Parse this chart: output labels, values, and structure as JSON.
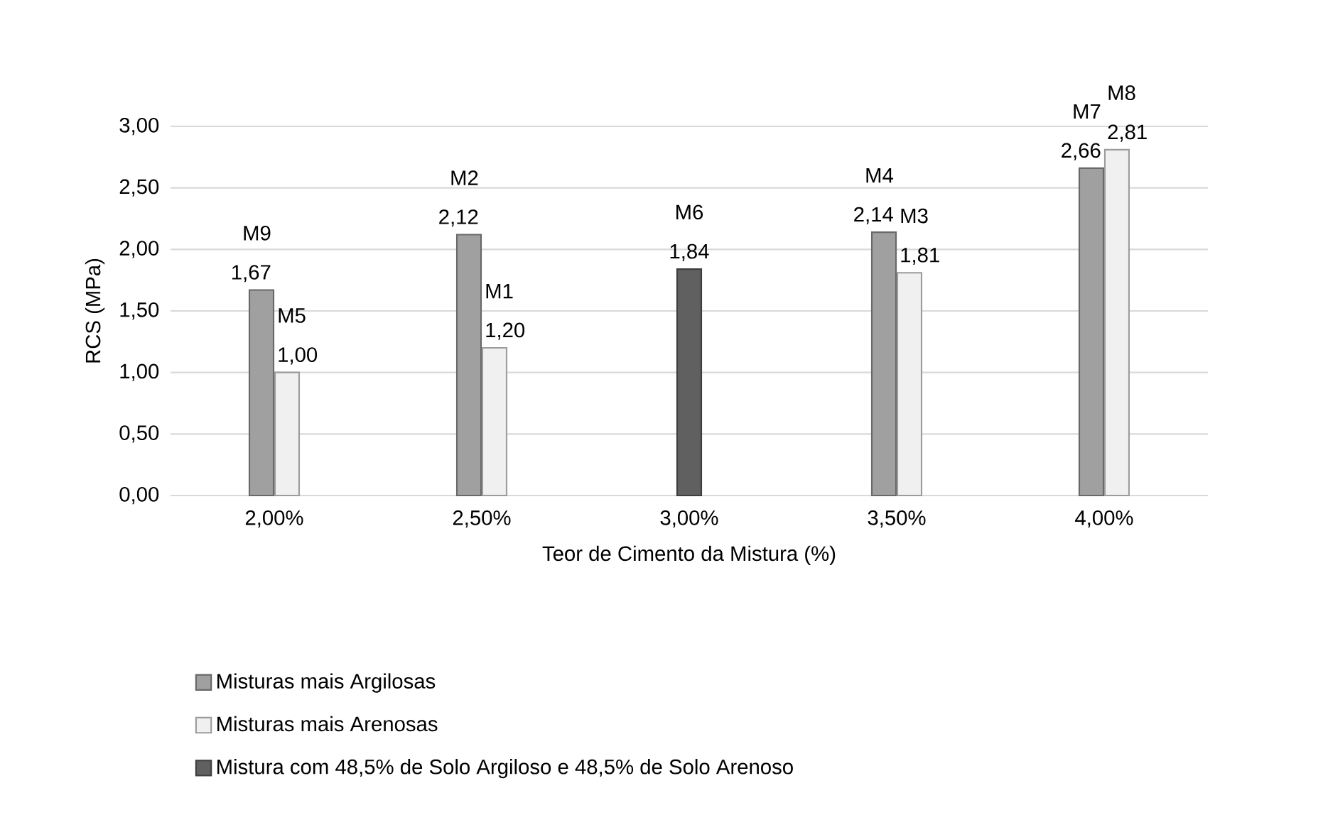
{
  "chart_data": {
    "type": "bar",
    "xlabel": "Teor de Cimento da Mistura (%)",
    "ylabel": "RCS (MPa)",
    "categories": [
      "2,00%",
      "2,50%",
      "3,00%",
      "3,50%",
      "4,00%"
    ],
    "series": [
      {
        "name": "Misturas mais Argilosas",
        "color": "#a0a0a0",
        "values": [
          1.67,
          2.12,
          null,
          2.14,
          2.66
        ],
        "value_labels": [
          "1,67",
          "2,12",
          null,
          "2,14",
          "2,66"
        ]
      },
      {
        "name": "Misturas mais Arenosas",
        "color": "#f0f0f0",
        "values": [
          1.0,
          1.2,
          null,
          1.81,
          2.81
        ],
        "value_labels": [
          "1,00",
          "1,20",
          null,
          "1,81",
          "2,81"
        ]
      },
      {
        "name": "Mistura com 48,5% de Solo Argiloso e 48,5% de Solo Arenoso",
        "color": "#606060",
        "values": [
          null,
          null,
          1.84,
          null,
          null
        ],
        "value_labels": [
          null,
          null,
          "1,84",
          null,
          null
        ]
      }
    ],
    "ylim": [
      0,
      3
    ],
    "yticks": [
      {
        "value": 0,
        "label": "0,00"
      },
      {
        "value": 0.5,
        "label": "0,50"
      },
      {
        "value": 1,
        "label": "1,00"
      },
      {
        "value": 1.5,
        "label": "1,50"
      },
      {
        "value": 2,
        "label": "2,00"
      },
      {
        "value": 2.5,
        "label": "2,50"
      },
      {
        "value": 3,
        "label": "3,00"
      }
    ],
    "grid": "y",
    "legend": "bottom",
    "annotations": [
      {
        "text": "M9",
        "x": "2,00%",
        "y": 1.67
      },
      {
        "text": "M5",
        "x": "2,00%",
        "y": 1.0
      },
      {
        "text": "M2",
        "x": "2,50%",
        "y": 2.12
      },
      {
        "text": "M1",
        "x": "2,50%",
        "y": 1.2
      },
      {
        "text": "M6",
        "x": "3,00%",
        "y": 1.84
      },
      {
        "text": "M4",
        "x": "3,50%",
        "y": 2.14
      },
      {
        "text": "M3",
        "x": "3,50%",
        "y": 1.81
      },
      {
        "text": "M7",
        "x": "4,00%",
        "y": 2.66
      },
      {
        "text": "M8",
        "x": "4,00%",
        "y": 2.81
      }
    ]
  }
}
